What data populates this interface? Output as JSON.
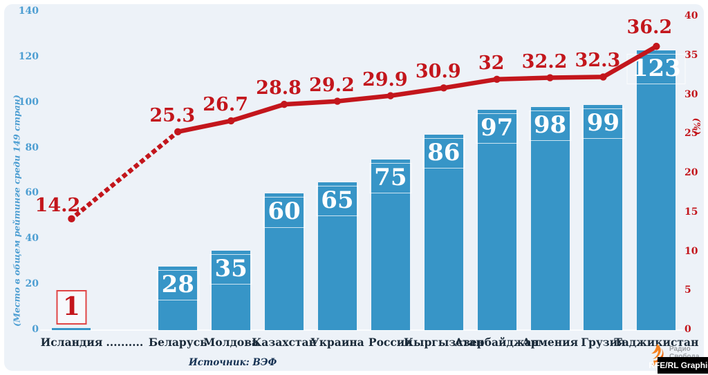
{
  "chart_data": {
    "type": "bar+line",
    "categories": [
      "Исландия",
      "..........",
      "Беларусь",
      "Молдова",
      "Казахстан",
      "Украина",
      "Россия",
      "Кыргызстан",
      "Азербайджан",
      "Армения",
      "Грузия",
      "Таджикистан"
    ],
    "bar_series": {
      "name": "Место в общем рейтинге среди 149 стран",
      "values": [
        1,
        null,
        28,
        35,
        60,
        65,
        75,
        86,
        97,
        98,
        99,
        123
      ]
    },
    "line_series": {
      "name": "(%)",
      "values": [
        14.2,
        null,
        25.3,
        26.7,
        28.8,
        29.2,
        29.9,
        30.9,
        32,
        32.2,
        32.3,
        36.2
      ],
      "first_segment_style": "dotted"
    },
    "left_axis": {
      "title": "(Место в общем рейтинге среди 149 стран)",
      "ticks": [
        0,
        20,
        40,
        60,
        80,
        100,
        120,
        140
      ],
      "min": 0,
      "max": 140
    },
    "right_axis": {
      "title": "(%)",
      "ticks": [
        0,
        5,
        10,
        15,
        20,
        25,
        30,
        35,
        40
      ],
      "min": 0,
      "max": 40
    },
    "grid": false,
    "legend_position": "none",
    "colors": {
      "bar": "#3795c7",
      "line": "#c3161c",
      "panel_background": "#edf2f8",
      "left_axis_text": "#4d9ed2",
      "right_axis_text": "#c3161c",
      "category_text": "#1b2b3a",
      "highlight_box_border": "#e04545",
      "bar_value_text": "#ffffff"
    }
  },
  "footer": {
    "source_label": "Источник: ВЭФ"
  },
  "branding": {
    "logo_line1": "Радио",
    "logo_line2": "Свобода",
    "credit": "RFE/RL Graphics"
  }
}
